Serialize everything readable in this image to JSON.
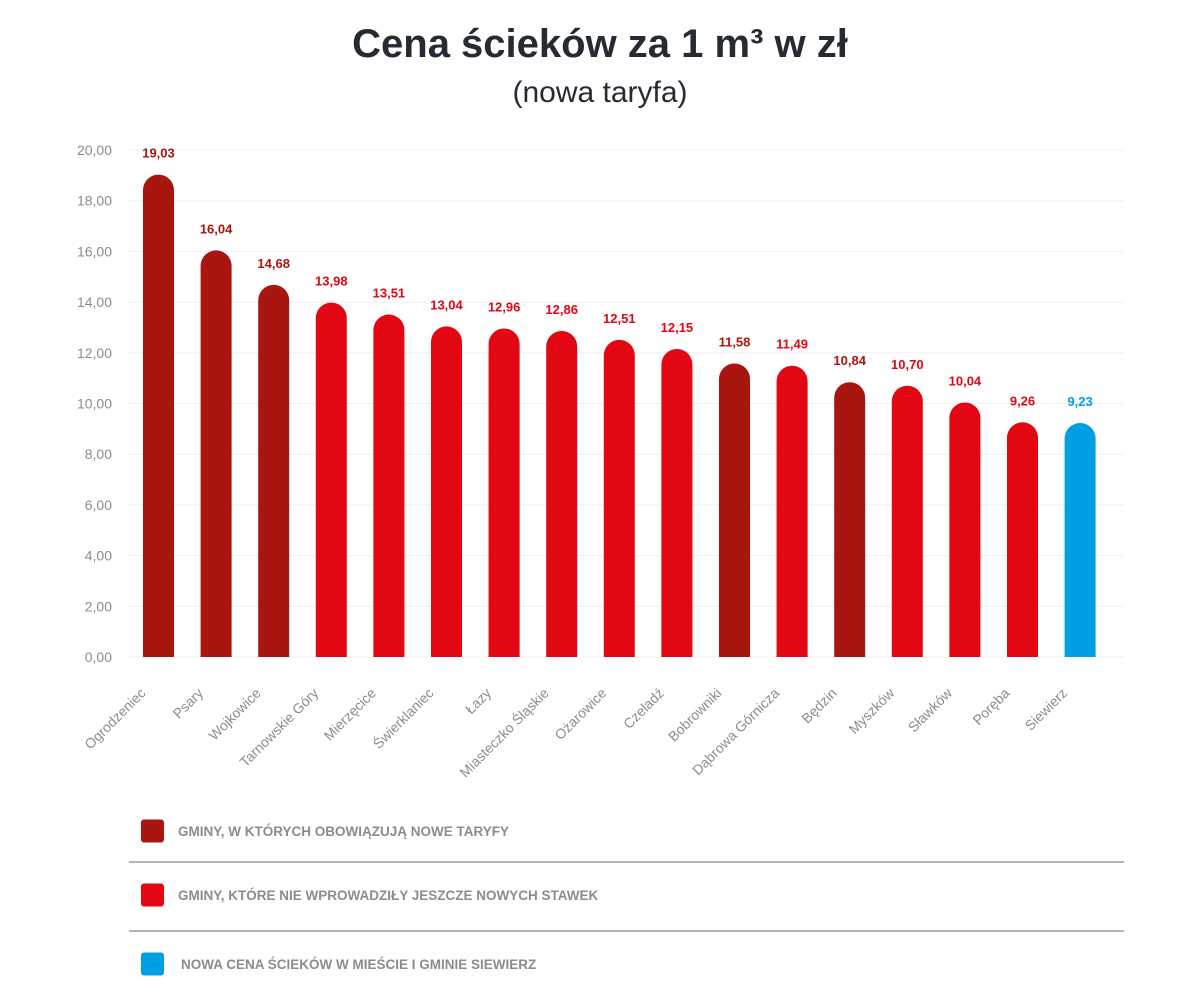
{
  "colors": {
    "dark_red": "#a8160f",
    "red": "#e30613",
    "blue": "#009fe3",
    "grid": "#efefef",
    "text_dark": "#262b33",
    "text_gray": "#8c8c8c"
  },
  "chart_data": {
    "type": "bar",
    "title": "Cena ścieków za 1 m³ w zł",
    "subtitle": "(nowa taryfa)",
    "xlabel": "",
    "ylabel": "",
    "ylim": [
      0,
      20
    ],
    "grid": true,
    "y_ticks": [
      "0,00",
      "2,00",
      "4,00",
      "6,00",
      "8,00",
      "10,00",
      "12,00",
      "14,00",
      "16,00",
      "18,00",
      "20,00"
    ],
    "categories": [
      "Ogrodzeniec",
      "Psary",
      "Wojkowice",
      "Tarnowskie Góry",
      "Mierzęcice",
      "Świerklaniec",
      "Łazy",
      "Miasteczko Śląskie",
      "Ożarowice",
      "Czeladź",
      "Bobrowniki",
      "Dąbrowa Górnicza",
      "Będzin",
      "Myszków",
      "Sławków",
      "Poręba",
      "Siewierz"
    ],
    "values": [
      19.03,
      16.04,
      14.68,
      13.98,
      13.51,
      13.04,
      12.96,
      12.86,
      12.51,
      12.15,
      11.58,
      11.49,
      10.84,
      10.7,
      10.04,
      9.26,
      9.23
    ],
    "value_labels": [
      "19,03",
      "16,04",
      "14,68",
      "13,98",
      "13,51",
      "13,04",
      "12,96",
      "12,86",
      "12,51",
      "12,15",
      "11,58",
      "11,49",
      "10,84",
      "10,70",
      "10,04",
      "9,26",
      "9,23"
    ],
    "groups": [
      "dark_red",
      "dark_red",
      "dark_red",
      "red",
      "red",
      "red",
      "red",
      "red",
      "red",
      "red",
      "dark_red",
      "red",
      "dark_red",
      "red",
      "red",
      "red",
      "blue"
    ],
    "legend": [
      {
        "label": "GMINY, W KTÓRYCH OBOWIĄZUJĄ NOWE TARYFY",
        "color_key": "dark_red"
      },
      {
        "label": "GMINY, KTÓRE NIE WPROWADZIŁY JESZCZE NOWYCH STAWEK",
        "color_key": "red"
      },
      {
        "label": "NOWA CENA ŚCIEKÓW W MIEŚCIE I GMINIE SIEWIERZ",
        "color_key": "blue"
      }
    ],
    "legend_position": "bottom"
  }
}
